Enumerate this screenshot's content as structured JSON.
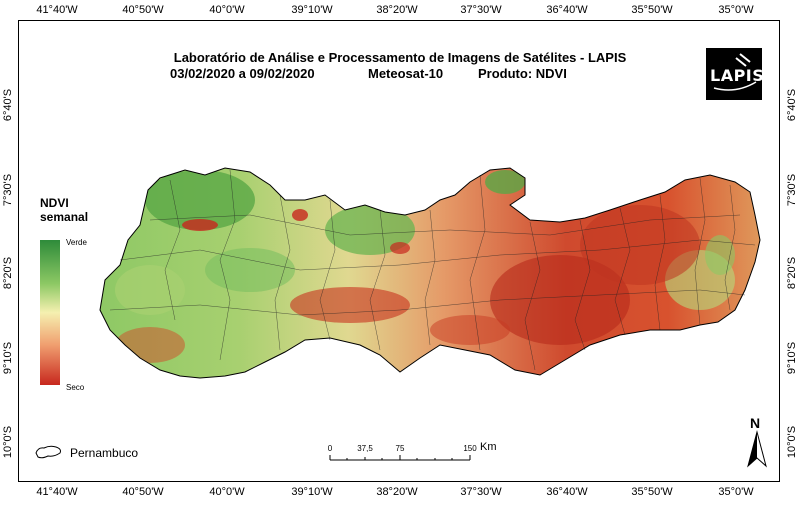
{
  "title": {
    "line1": "Laboratório de Análise e Processamento de Imagens de Satélites - LAPIS",
    "line2_dates": "03/02/2020  a 09/02/2020",
    "line2_sat": "Meteosat-10",
    "line2_product": "Produto: NDVI"
  },
  "longitude_ticks": [
    "41°40'W",
    "40°50'W",
    "40°0'W",
    "39°10'W",
    "38°20'W",
    "37°30'W",
    "36°40'W",
    "35°50'W",
    "35°0'W"
  ],
  "latitude_ticks": [
    "6°40'S",
    "7°30'S",
    "8°20'S",
    "9°10'S",
    "10°0'S"
  ],
  "legend": {
    "title_line1": "NDVI",
    "title_line2": "semanal",
    "top_label": "Verde",
    "bottom_label": "Seco",
    "colors": [
      "#2e8b3a",
      "#8cc864",
      "#f5f0b0",
      "#f0a070",
      "#c8281e"
    ]
  },
  "logo_text": "LAPIS",
  "scale": {
    "labels": [
      "0",
      "37,5",
      "75",
      "150"
    ],
    "unit": "Km"
  },
  "north": "N",
  "region_label": "Pernambuco"
}
